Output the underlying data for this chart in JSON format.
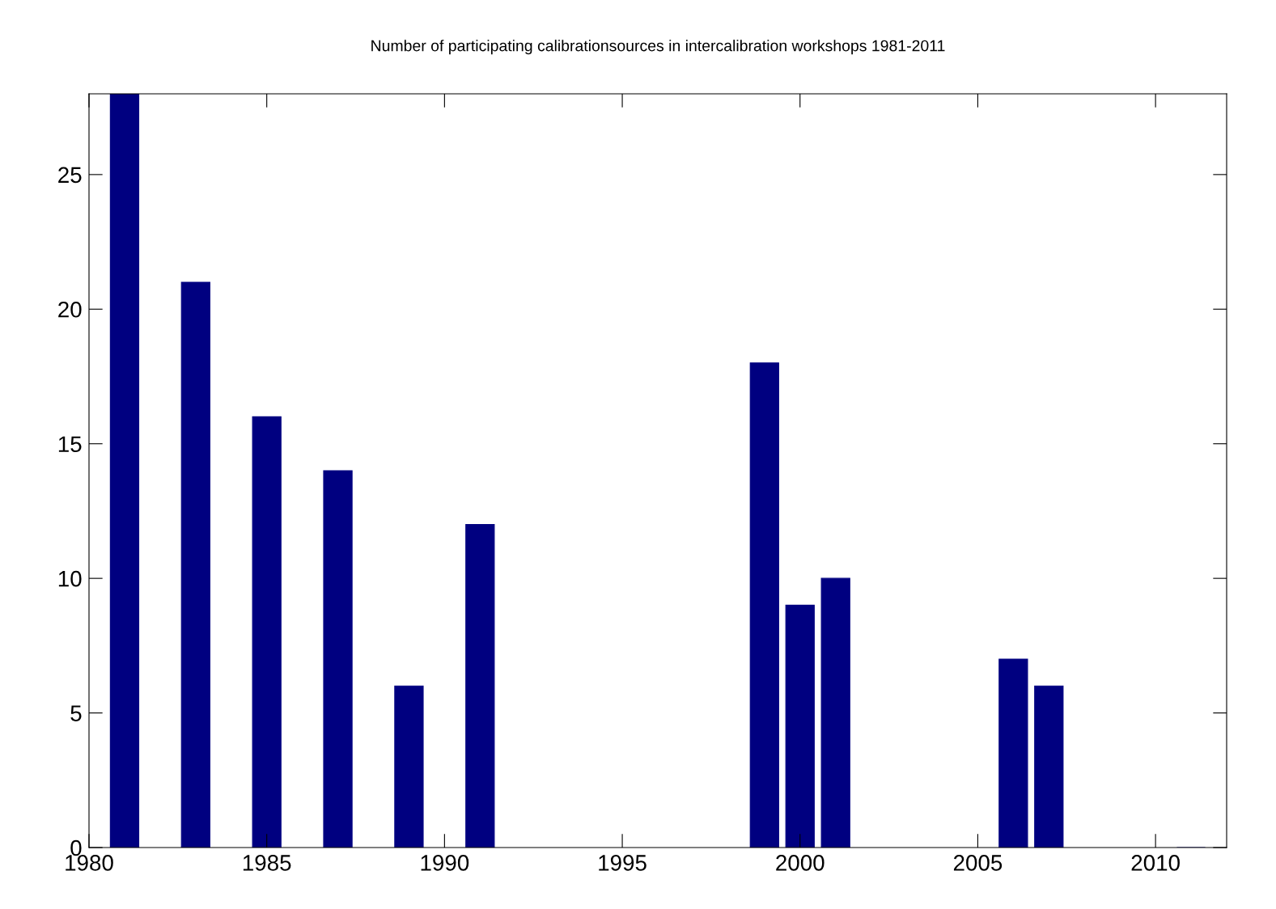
{
  "chart_data": {
    "type": "bar",
    "title": "Number of participating calibrationsources in intercalibration workshops 1981-2011",
    "x": [
      1981,
      1983,
      1985,
      1987,
      1989,
      1991,
      1999,
      2000,
      2001,
      2006,
      2007,
      2011
    ],
    "values": [
      28,
      21,
      16,
      14,
      6,
      12,
      18,
      9,
      10,
      7,
      6,
      0
    ],
    "color": "#000080",
    "xlim": [
      1980,
      2012
    ],
    "xticks": [
      1980,
      1985,
      1990,
      1995,
      2000,
      2005,
      2010
    ],
    "ylim": [
      0,
      28
    ],
    "yticks": [
      0,
      5,
      10,
      15,
      20,
      25
    ],
    "grid": false,
    "legend": false
  }
}
